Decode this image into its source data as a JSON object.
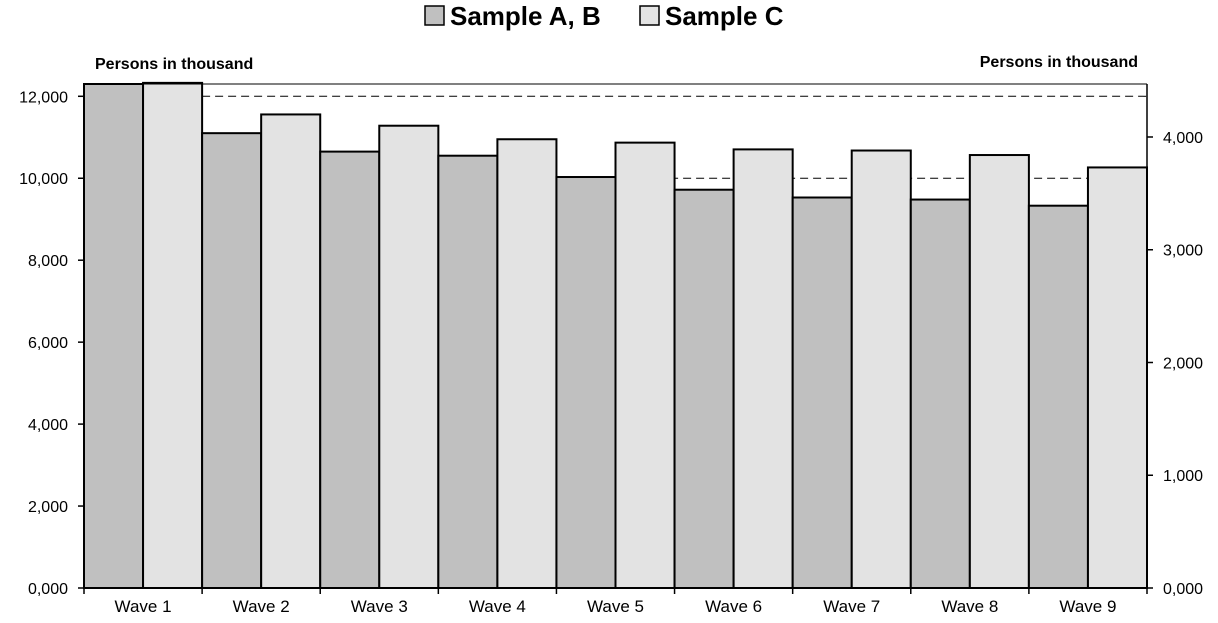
{
  "chart_data": {
    "type": "bar",
    "categories": [
      "Wave 1",
      "Wave 2",
      "Wave 3",
      "Wave 4",
      "Wave 5",
      "Wave 6",
      "Wave 7",
      "Wave 8",
      "Wave 9"
    ],
    "series": [
      {
        "name": "Sample A, B",
        "axis": "left",
        "color": "#c0c0c0",
        "values": [
          12300,
          11100,
          10650,
          10550,
          10030,
          9720,
          9530,
          9480,
          9330
        ]
      },
      {
        "name": "Sample C",
        "axis": "right",
        "color": "#e3e3e3",
        "values": [
          4480,
          4200,
          4100,
          3980,
          3950,
          3890,
          3880,
          3840,
          3730
        ]
      }
    ],
    "ylabel_left": "Persons in thousand",
    "ylabel_right": "Persons in thousand",
    "ylim_left": [
      0,
      12300
    ],
    "ylim_right": [
      0,
      4470
    ],
    "yticks_left": [
      "0,000",
      "2,000",
      "4,000",
      "6,000",
      "8,000",
      "10,000",
      "12,000"
    ],
    "yticks_left_values": [
      0,
      2000,
      4000,
      6000,
      8000,
      10000,
      12000
    ],
    "yticks_right": [
      "0,000",
      "1,000",
      "2,000",
      "3,000",
      "4,000"
    ],
    "yticks_right_values": [
      0,
      1000,
      2000,
      3000,
      4000
    ],
    "reference_lines_left": [
      12000,
      10000
    ],
    "legend_position": "top-center",
    "grid": false
  }
}
